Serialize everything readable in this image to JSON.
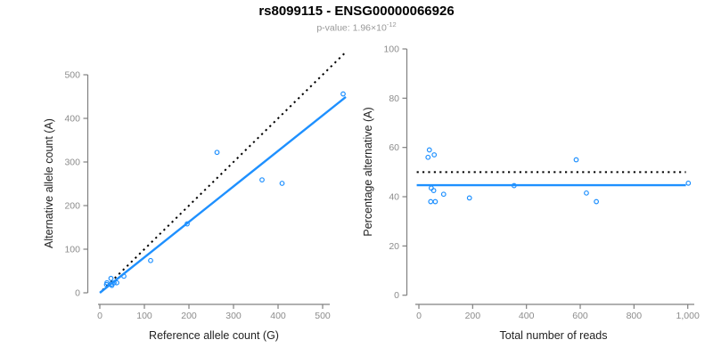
{
  "header": {
    "title": "rs8099115 - ENSG00000066926",
    "subtitle_text": "p-value: 1.96×10",
    "subtitle_exponent": "-12"
  },
  "colors": {
    "accent_blue": "#1E90FF",
    "reference_black": "#000000",
    "axis_gray": "#808080",
    "tick_label_gray": "#8C8C8C",
    "axis_title_color": "#222222",
    "subtitle_gray": "#999999",
    "background": "#FFFFFF"
  },
  "chart_data": [
    {
      "name": "allele-count-scatter",
      "type": "scatter",
      "xlabel": "Reference allele count (G)",
      "ylabel": "Alternative allele count (A)",
      "xlim": [
        0,
        555
      ],
      "ylim": [
        0,
        560
      ],
      "xticks": [
        0,
        100,
        200,
        300,
        400,
        500
      ],
      "xtick_labels": [
        "0",
        "100",
        "200",
        "300",
        "400",
        "500"
      ],
      "yticks": [
        0,
        100,
        200,
        300,
        400,
        500
      ],
      "ytick_labels": [
        "0",
        "100",
        "200",
        "300",
        "400",
        "500"
      ],
      "grid": false,
      "legend": "none",
      "points": [
        [
          15,
          19
        ],
        [
          16,
          23
        ],
        [
          25,
          33
        ],
        [
          26,
          20
        ],
        [
          27,
          17
        ],
        [
          32,
          23
        ],
        [
          38,
          23
        ],
        [
          54,
          38
        ],
        [
          114,
          74
        ],
        [
          196,
          158
        ],
        [
          263,
          322
        ],
        [
          364,
          259
        ],
        [
          409,
          251
        ],
        [
          546,
          456
        ]
      ],
      "lines": [
        {
          "name": "identity-line",
          "style": "dotted",
          "color": "black",
          "x1": 6,
          "y1": 6,
          "x2": 552,
          "y2": 552
        },
        {
          "name": "fit-line",
          "style": "solid",
          "color": "blue",
          "x1": 0,
          "y1": 0,
          "x2": 552,
          "y2": 449
        }
      ]
    },
    {
      "name": "percentage-alternative-scatter",
      "type": "scatter",
      "xlabel": "Total number of reads",
      "ylabel": "Percentage alternative (A)",
      "xlim": [
        0,
        1010
      ],
      "ylim": [
        0,
        100
      ],
      "xticks": [
        0,
        200,
        400,
        600,
        800,
        1000
      ],
      "xtick_labels": [
        "0",
        "200",
        "400",
        "600",
        "800",
        "1,000"
      ],
      "yticks": [
        0,
        20,
        40,
        60,
        80,
        100
      ],
      "ytick_labels": [
        "0",
        "20",
        "40",
        "60",
        "80",
        "100"
      ],
      "grid": false,
      "legend": "none",
      "points": [
        [
          34,
          56
        ],
        [
          39,
          59
        ],
        [
          57,
          57
        ],
        [
          44,
          38
        ],
        [
          46,
          43.5
        ],
        [
          55,
          42.5
        ],
        [
          61,
          38
        ],
        [
          92,
          41
        ],
        [
          188,
          39.5
        ],
        [
          354,
          44.5
        ],
        [
          585,
          55
        ],
        [
          623,
          41.5
        ],
        [
          660,
          38
        ],
        [
          1002,
          45.5
        ]
      ],
      "lines": [
        {
          "name": "expected-50pct-line",
          "style": "dotted",
          "color": "black",
          "x1": -8,
          "y1": 50,
          "x2": 993,
          "y2": 50
        },
        {
          "name": "mean-percentage-line",
          "style": "solid",
          "color": "blue",
          "x1": -8,
          "y1": 44.7,
          "x2": 993,
          "y2": 44.7
        }
      ]
    }
  ]
}
